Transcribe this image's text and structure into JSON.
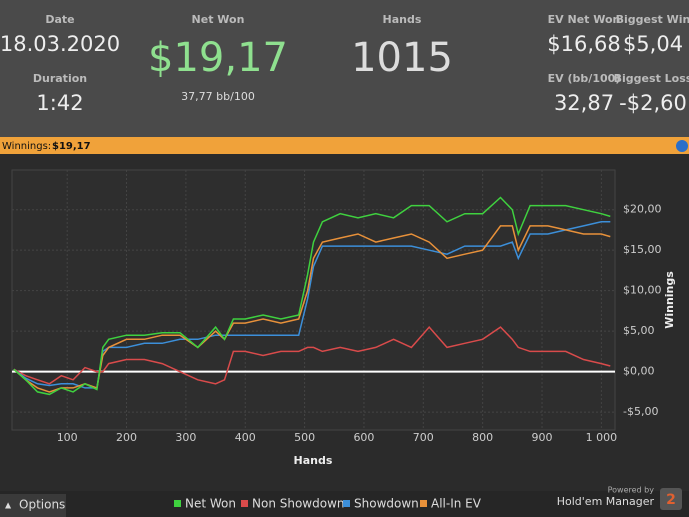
{
  "header": {
    "date_label": "Date",
    "date": "18.03.2020",
    "duration_label": "Duration",
    "duration": "1:42",
    "net_won_label": "Net Won",
    "net_won": "$19,17",
    "bb100": "37,77 bb/100",
    "hands_label": "Hands",
    "hands": "1015",
    "ev_net_won_label": "EV Net Won",
    "ev_net_won": "$16,68",
    "biggest_win_label": "Biggest Win",
    "biggest_win": "$5,04",
    "ev_bb100_label": "EV (bb/100)",
    "ev_bb100": "32,87",
    "biggest_loss_label": "Biggest Loss",
    "biggest_loss": "-$2,60"
  },
  "banner": {
    "label": "Winnings:",
    "value": "$19,17"
  },
  "footer": {
    "options": "Options",
    "powered": "Powered by",
    "brand": "Hold'em Manager",
    "version": "2"
  },
  "chart_data": {
    "type": "line",
    "x_label": "Hands",
    "y_label": "Winnings",
    "x": [
      10,
      30,
      50,
      70,
      90,
      110,
      130,
      150,
      160,
      170,
      200,
      230,
      260,
      290,
      320,
      350,
      365,
      380,
      400,
      430,
      460,
      490,
      505,
      515,
      530,
      560,
      590,
      620,
      650,
      680,
      710,
      740,
      770,
      800,
      830,
      850,
      860,
      880,
      910,
      940,
      970,
      1000,
      1015
    ],
    "series": [
      {
        "name": "Net Won",
        "color": "#3fd13f",
        "values": [
          0.3,
          -1,
          -2.5,
          -2.8,
          -2,
          -2.5,
          -1.5,
          -2.2,
          3,
          4,
          4.5,
          4.5,
          4.8,
          4.8,
          3,
          5.5,
          4,
          6.5,
          6.5,
          7,
          6.5,
          7,
          12,
          16,
          18.5,
          19.5,
          19,
          19.5,
          19,
          20.5,
          20.5,
          18.5,
          19.5,
          19.5,
          21.5,
          20,
          17,
          20.5,
          20.5,
          20.5,
          20,
          19.5,
          19.17
        ]
      },
      {
        "name": "Non Showdown",
        "color": "#d94b4b",
        "values": [
          0.3,
          -0.5,
          -1,
          -1.5,
          -0.5,
          -1,
          0.5,
          0,
          0,
          1,
          1.5,
          1.5,
          1,
          0,
          -1,
          -1.5,
          -1,
          2.5,
          2.5,
          2,
          2.5,
          2.5,
          3,
          3,
          2.5,
          3,
          2.5,
          3,
          4,
          3,
          5.5,
          3,
          3.5,
          4,
          5.5,
          4,
          3,
          2.5,
          2.5,
          2.5,
          1.5,
          1,
          0.7
        ]
      },
      {
        "name": "Showdown",
        "color": "#3c8fd9",
        "values": [
          0.3,
          -0.8,
          -1.5,
          -1.7,
          -1.5,
          -1.5,
          -2,
          -2,
          2.5,
          3,
          3,
          3.5,
          3.5,
          4,
          4,
          4.5,
          4.5,
          4.5,
          4.5,
          4.5,
          4.5,
          4.5,
          9,
          13,
          15.5,
          15.5,
          15.5,
          15.5,
          15.5,
          15.5,
          15,
          14.5,
          15.5,
          15.5,
          15.5,
          16,
          14,
          17,
          17,
          17.5,
          18,
          18.5,
          18.5
        ]
      },
      {
        "name": "All-In EV",
        "color": "#e8913a",
        "values": [
          0.3,
          -1,
          -2,
          -2.5,
          -2,
          -2,
          -1.5,
          -2,
          2,
          3,
          4,
          4,
          4.5,
          4.5,
          3,
          5,
          4,
          6,
          6,
          6.5,
          6,
          6.5,
          10,
          14,
          16,
          16.5,
          17,
          16,
          16.5,
          17,
          16,
          14,
          14.5,
          15,
          18,
          18,
          15,
          18,
          18,
          17.5,
          17,
          17,
          16.68
        ]
      }
    ],
    "xlim": [
      7,
      1023
    ],
    "ylim": [
      -7.2,
      24.9
    ],
    "xticks": [
      100,
      200,
      300,
      400,
      500,
      600,
      700,
      800,
      900,
      {
        "value": 1000,
        "label": "1 000"
      }
    ],
    "yticks": [
      {
        "value": -5,
        "label": "-$5,00"
      },
      {
        "value": 0,
        "label": "$0,00"
      },
      {
        "value": 5,
        "label": "$5,00"
      },
      {
        "value": 10,
        "label": "$10,00"
      },
      {
        "value": 15,
        "label": "$15,00"
      },
      {
        "value": 20,
        "label": "$20,00"
      }
    ],
    "grid": true
  }
}
